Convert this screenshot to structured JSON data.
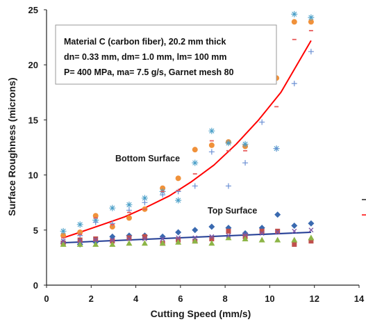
{
  "chart_data": {
    "type": "scatter",
    "title": "",
    "xlabel": "Cutting Speed (mm/s)",
    "ylabel": "Surface Roughness (microns)",
    "xlim": [
      0,
      14
    ],
    "ylim": [
      0,
      25
    ],
    "xticks": [
      "0",
      "2",
      "4",
      "6",
      "8",
      "10",
      "12",
      "14"
    ],
    "yticks": [
      "0",
      "5",
      "10",
      "15",
      "20",
      "25"
    ],
    "grid": false,
    "legend": "none",
    "annotation_box": [
      "Material  C (carbon fiber), 20.2 mm thick",
      "dn= 0.33 mm, dm= 1.0 mm, lm= 100 mm",
      "P= 400 MPa, ma= 7.5 g/s, Garnet mesh 80"
    ],
    "curve_labels": {
      "bottom": "Bottom Surface",
      "top": "Top Surface"
    },
    "colors": {
      "bottom_fit": "#ff0000",
      "top_fit": "#1f3a93"
    },
    "series": [
      {
        "group": "bottom",
        "marker": "circle",
        "color": "#f0913a",
        "x": [
          0.75,
          1.5,
          2.2,
          2.95,
          3.7,
          4.4,
          5.2,
          5.9,
          6.65,
          7.4,
          8.15,
          8.9,
          10.3,
          11.1,
          11.85
        ],
        "y": [
          4.5,
          4.8,
          6.3,
          5.3,
          6.1,
          6.9,
          8.8,
          9.7,
          12.3,
          12.7,
          13.0,
          12.6,
          18.8,
          23.9,
          23.9
        ]
      },
      {
        "group": "bottom",
        "marker": "asterisk",
        "color": "#4a9fc8",
        "x": [
          0.75,
          1.5,
          2.2,
          2.95,
          3.7,
          4.4,
          5.2,
          5.9,
          6.65,
          7.4,
          8.15,
          8.9,
          10.3,
          11.1,
          11.85
        ],
        "y": [
          4.9,
          5.5,
          5.9,
          7.0,
          7.3,
          7.9,
          8.5,
          7.7,
          11.1,
          14.0,
          12.9,
          12.8,
          12.4,
          24.6,
          24.3
        ]
      },
      {
        "group": "bottom",
        "marker": "plus",
        "color": "#6a8fd4",
        "x": [
          0.75,
          1.5,
          2.2,
          2.95,
          3.7,
          4.4,
          5.2,
          5.9,
          6.65,
          7.4,
          8.15,
          8.9,
          9.65,
          10.3,
          11.1,
          11.85
        ],
        "y": [
          4.0,
          4.5,
          5.7,
          5.6,
          6.8,
          7.5,
          8.2,
          8.5,
          9.0,
          12.1,
          9.0,
          11.1,
          14.8,
          12.4,
          18.3,
          21.2
        ]
      },
      {
        "group": "bottom",
        "marker": "dash",
        "color": "#e85a5a",
        "x": [
          0.75,
          1.5,
          2.2,
          2.95,
          3.7,
          4.4,
          5.2,
          5.9,
          6.65,
          7.4,
          8.15,
          8.9,
          9.65,
          10.3,
          11.1,
          11.85
        ],
        "y": [
          4.3,
          4.6,
          6.1,
          5.5,
          6.6,
          6.9,
          8.5,
          8.6,
          10.1,
          13.1,
          12.2,
          12.2,
          18.3,
          16.2,
          22.3,
          23.1
        ]
      },
      {
        "group": "top",
        "marker": "diamond",
        "color": "#3a6ab0",
        "x": [
          0.75,
          1.5,
          2.2,
          2.95,
          3.7,
          4.4,
          5.2,
          5.9,
          6.65,
          7.4,
          8.15,
          8.9,
          9.65,
          10.35,
          11.1,
          11.85
        ],
        "y": [
          3.8,
          3.7,
          3.9,
          4.4,
          4.5,
          4.5,
          4.4,
          4.8,
          5.0,
          5.3,
          5.2,
          4.7,
          5.2,
          6.4,
          5.4,
          5.6
        ]
      },
      {
        "group": "top",
        "marker": "square",
        "color": "#c0504d",
        "x": [
          0.75,
          1.5,
          2.2,
          2.95,
          3.7,
          4.4,
          5.2,
          5.9,
          6.65,
          7.4,
          8.15,
          8.9,
          9.65,
          10.35,
          11.1,
          11.85
        ],
        "y": [
          3.8,
          4.1,
          4.2,
          4.0,
          4.3,
          4.4,
          3.8,
          4.1,
          4.0,
          4.2,
          4.9,
          4.4,
          4.9,
          4.9,
          3.7,
          4.0
        ]
      },
      {
        "group": "top",
        "marker": "triangle",
        "color": "#8db547",
        "x": [
          0.75,
          1.5,
          2.2,
          2.95,
          3.7,
          4.4,
          5.2,
          5.9,
          6.65,
          7.4,
          8.15,
          8.9,
          9.65,
          10.35,
          11.1,
          11.85
        ],
        "y": [
          3.7,
          3.7,
          3.7,
          3.7,
          3.8,
          3.8,
          3.8,
          3.9,
          4.0,
          3.8,
          4.3,
          4.2,
          4.1,
          4.1,
          4.1,
          4.3
        ]
      },
      {
        "group": "top",
        "marker": "x",
        "color": "#7e57a6",
        "x": [
          0.75,
          1.5,
          2.2,
          2.95,
          3.7,
          4.4,
          5.2,
          5.9,
          6.65,
          7.4,
          8.15,
          8.9,
          9.65,
          10.35,
          11.1,
          11.85
        ],
        "y": [
          4.0,
          4.0,
          4.1,
          4.1,
          4.2,
          4.2,
          4.2,
          4.3,
          4.3,
          4.4,
          4.5,
          4.6,
          4.7,
          4.8,
          4.9,
          5.0
        ]
      }
    ],
    "fits": [
      {
        "group": "bottom",
        "color": "#ff0000",
        "x": [
          0.75,
          1.5,
          2.5,
          3.5,
          4.5,
          5.5,
          6.5,
          7.5,
          8.5,
          9.5,
          10.5,
          11.85
        ],
        "y": [
          4.3,
          4.8,
          5.5,
          6.2,
          7.1,
          8.1,
          9.4,
          10.9,
          12.8,
          15.0,
          17.5,
          22.2
        ]
      },
      {
        "group": "top",
        "color": "#1f3a93",
        "x": [
          0.75,
          11.85
        ],
        "y": [
          3.85,
          4.8
        ]
      }
    ]
  }
}
